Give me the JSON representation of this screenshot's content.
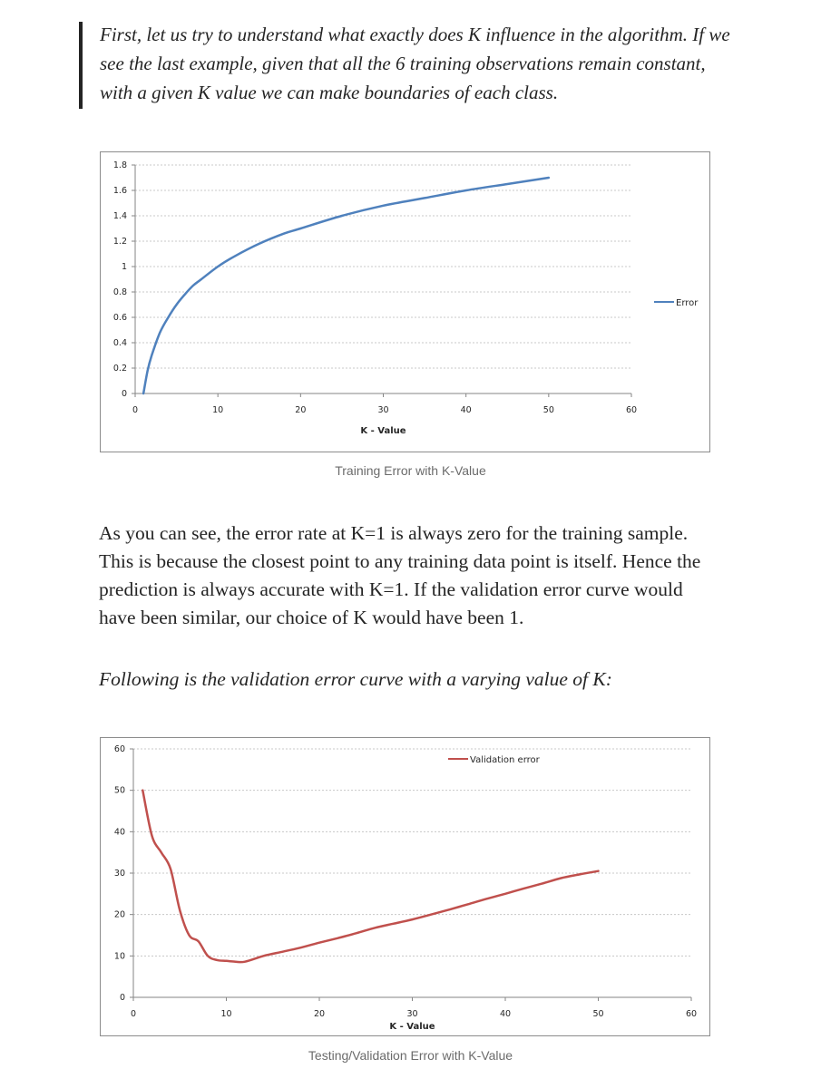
{
  "quote": {
    "lines": [
      "First, let us try to understand what exactly does K influence in the algorithm. If we",
      "see the last example, given that all the 6 training observations remain constant,",
      "with a given K value we can make boundaries of each class."
    ]
  },
  "paragraph": {
    "lines": [
      "As you can see, the error rate at K=1 is always zero for the training sample.",
      "This is because the closest point to any training data point is itself. Hence the",
      "prediction is always accurate with K=1. If the validation error curve would",
      "have been similar, our choice of K would have been 1."
    ]
  },
  "intro_italic": "Following is the validation error curve with a varying value of K:",
  "captions": {
    "training": "Training Error with K-Value",
    "validation": "Testing/Validation Error with K-Value"
  },
  "chart_data": [
    {
      "type": "line",
      "title": "",
      "xlabel": "K - Value",
      "ylabel": "",
      "xlim": [
        0,
        60
      ],
      "ylim": [
        0,
        1.8
      ],
      "xticks": [
        "0",
        "10",
        "20",
        "30",
        "40",
        "50",
        "60"
      ],
      "yticks": [
        "0",
        "0.2",
        "0.4",
        "0.6",
        "0.8",
        "1",
        "1.2",
        "1.4",
        "1.6",
        "1.8"
      ],
      "grid": "horizontal dashed",
      "legend_position": "right",
      "series": [
        {
          "name": "Error",
          "color": "#4f81bd",
          "x": [
            1,
            1.5,
            2,
            3,
            4,
            5,
            6,
            7,
            8,
            10,
            12,
            15,
            18,
            20,
            25,
            30,
            35,
            40,
            45,
            50
          ],
          "y": [
            0,
            0.18,
            0.3,
            0.48,
            0.6,
            0.7,
            0.78,
            0.85,
            0.9,
            1.0,
            1.08,
            1.18,
            1.26,
            1.3,
            1.4,
            1.48,
            1.54,
            1.6,
            1.65,
            1.7
          ]
        }
      ]
    },
    {
      "type": "line",
      "title": "",
      "xlabel": "K - Value",
      "ylabel": "",
      "xlim": [
        0,
        60
      ],
      "ylim": [
        0,
        60
      ],
      "xticks": [
        "0",
        "10",
        "20",
        "30",
        "40",
        "50",
        "60"
      ],
      "yticks": [
        "0",
        "10",
        "20",
        "30",
        "40",
        "50",
        "60"
      ],
      "grid": "horizontal dashed",
      "legend_position": "top",
      "series": [
        {
          "name": "Validation error",
          "color": "#c0504d",
          "x": [
            1,
            2,
            3,
            4,
            5,
            6,
            7,
            8,
            9,
            10,
            11,
            12,
            14,
            16,
            18,
            20,
            22,
            24,
            26,
            28,
            30,
            32,
            34,
            36,
            38,
            40,
            42,
            44,
            46,
            48,
            50
          ],
          "y": [
            50,
            39,
            35,
            31,
            21,
            15,
            13.5,
            10,
            9,
            8.8,
            8.6,
            8.6,
            10,
            11,
            12,
            13.2,
            14.3,
            15.5,
            16.8,
            17.8,
            18.8,
            20,
            21.2,
            22.5,
            23.8,
            25,
            26.3,
            27.5,
            28.8,
            29.7,
            30.5
          ]
        }
      ]
    }
  ]
}
